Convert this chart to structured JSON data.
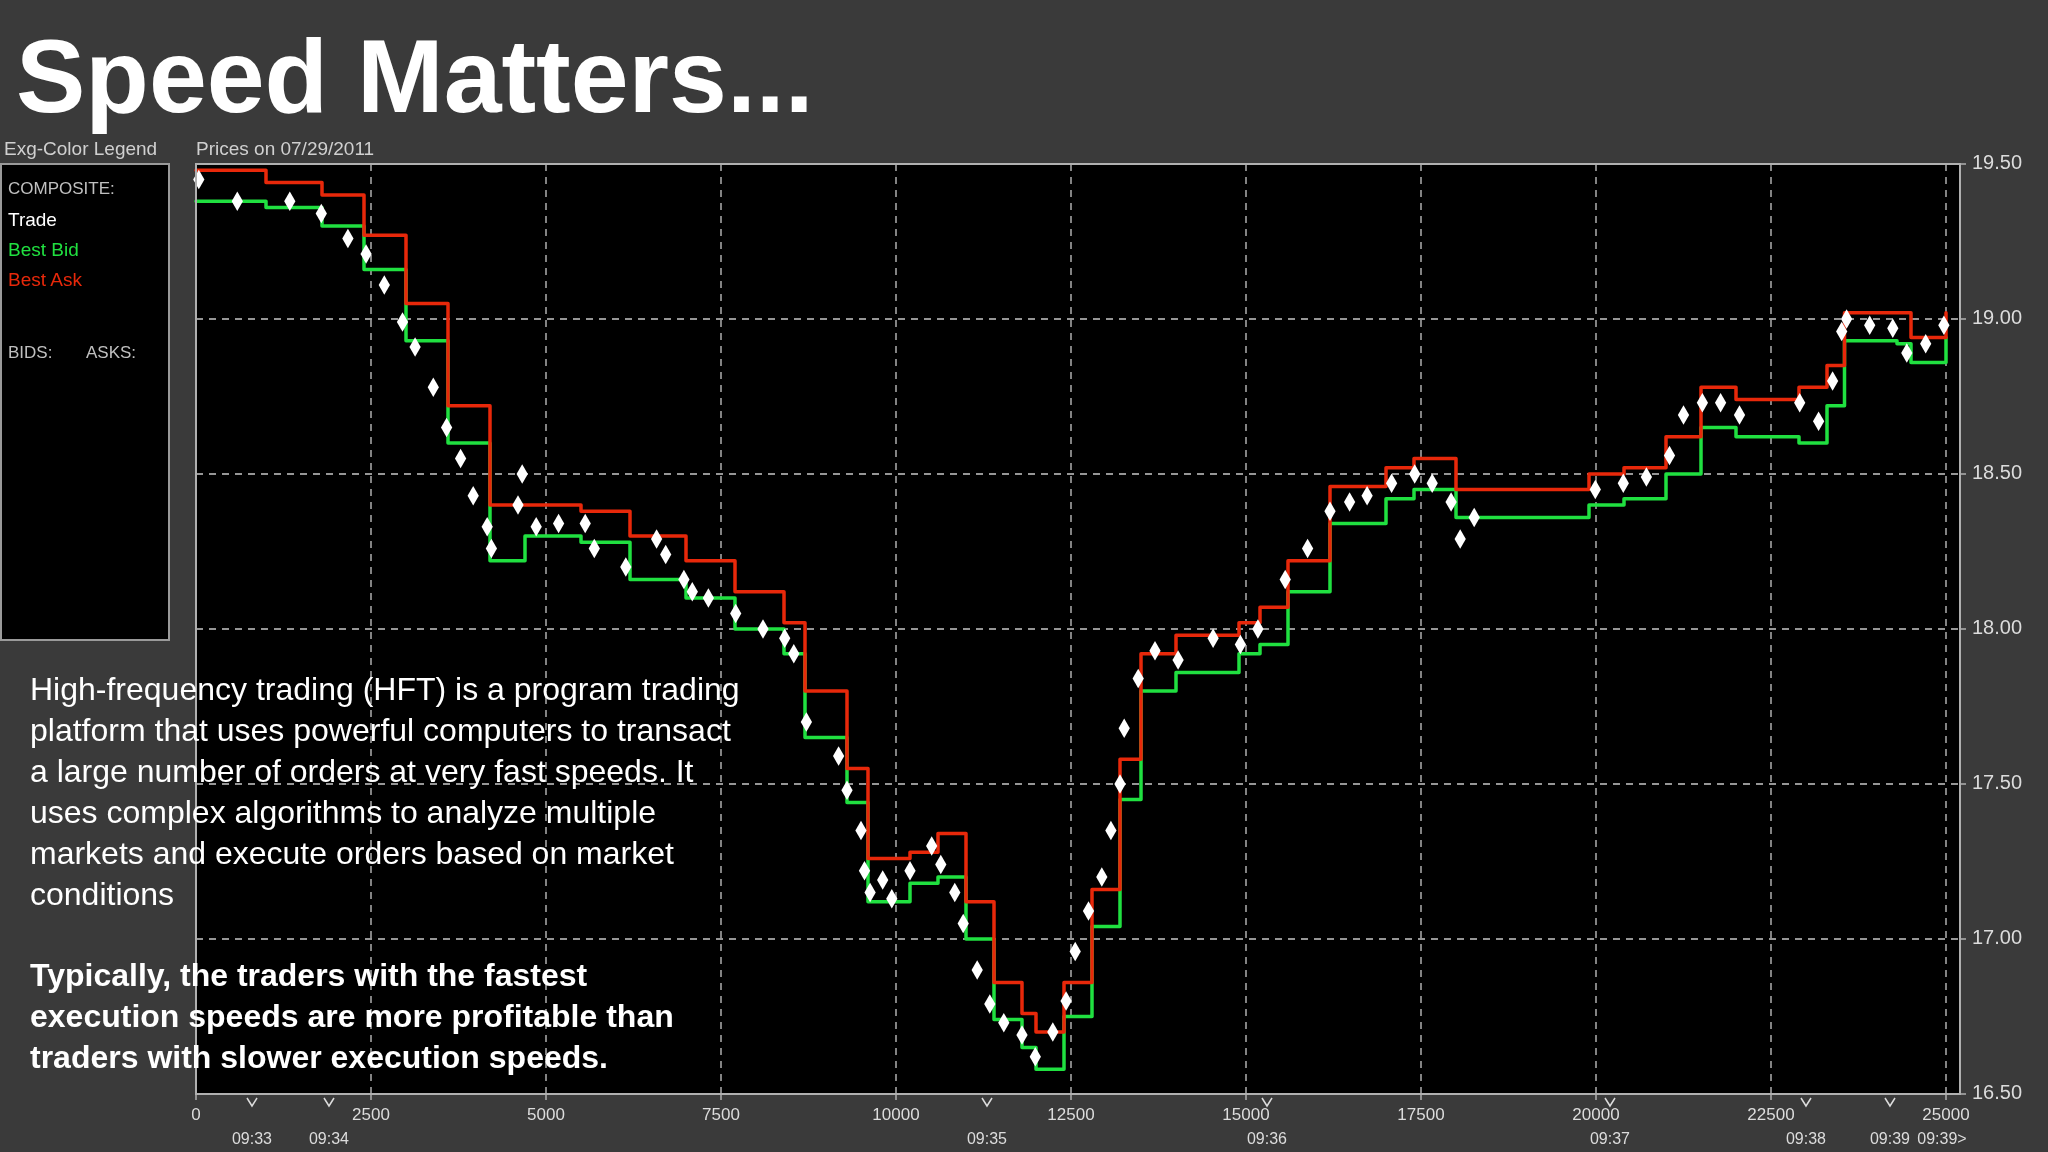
{
  "chart_data": {
    "type": "scatter",
    "title": "Speed Matters...",
    "subtitle": "Prices on 07/29/2011",
    "legend_title": "Exg-Color Legend",
    "legend": "left",
    "grid": true,
    "xlim": [
      0,
      25200
    ],
    "xticks": [
      0,
      2500,
      5000,
      7500,
      10000,
      12500,
      15000,
      17500,
      20000,
      22500,
      25000
    ],
    "ylim": [
      16.5,
      19.5
    ],
    "yticks": [
      {
        "value": 16.5,
        "label": "16.50"
      },
      {
        "value": 17,
        "label": "17.00"
      },
      {
        "value": 17.5,
        "label": "17.50"
      },
      {
        "value": 18,
        "label": "18.00"
      },
      {
        "value": 18.5,
        "label": "18.50"
      },
      {
        "value": 19,
        "label": "19.00"
      },
      {
        "value": 19.5,
        "label": "19.50"
      }
    ],
    "x": [
      0,
      1000,
      1800,
      2400,
      3000,
      3600,
      4200,
      4700,
      5500,
      6200,
      7000,
      7700,
      8400,
      8700,
      9300,
      9600,
      10200,
      10600,
      11000,
      11400,
      11800,
      12000,
      12400,
      12800,
      13200,
      13500,
      14000,
      14900,
      15200,
      15600,
      16200,
      17000,
      17400,
      18000,
      18300,
      19900,
      20400,
      21000,
      21500,
      22000,
      22900,
      23300,
      23550,
      24300,
      24500,
      25000
    ],
    "series": [
      {
        "name": "Trade",
        "color": "#ffffff",
        "marker": "diamond",
        "x": [
          40,
          590,
          1340,
          1790,
          2170,
          2430,
          2690,
          2950,
          3130,
          3390,
          3580,
          3780,
          3960,
          4160,
          4220,
          4600,
          4660,
          4860,
          5180,
          5560,
          5690,
          6140,
          6580,
          6710,
          6970,
          7090,
          7320,
          7710,
          8100,
          8410,
          8540,
          8720,
          9180,
          9300,
          9500,
          9550,
          9630,
          9810,
          9940,
          10200,
          10510,
          10640,
          10840,
          10960,
          11160,
          11340,
          11540,
          11800,
          11990,
          12240,
          12430,
          12560,
          12750,
          12940,
          13070,
          13200,
          13260,
          13460,
          13700,
          14030,
          14530,
          14920,
          15170,
          15560,
          15880,
          16200,
          16480,
          16730,
          17080,
          17410,
          17660,
          17930,
          18060,
          18260,
          19990,
          20390,
          20720,
          21050,
          21250,
          21520,
          21780,
          22050,
          22910,
          23180,
          23380,
          23510,
          23580,
          23910,
          24240,
          24440,
          24710,
          24970
        ],
        "values": [
          19.45,
          19.38,
          19.38,
          19.34,
          19.26,
          19.21,
          19.11,
          18.99,
          18.91,
          18.78,
          18.65,
          18.55,
          18.43,
          18.33,
          18.26,
          18.4,
          18.5,
          18.33,
          18.34,
          18.34,
          18.26,
          18.2,
          18.29,
          18.24,
          18.16,
          18.12,
          18.1,
          18.05,
          18.0,
          17.97,
          17.92,
          17.7,
          17.59,
          17.48,
          17.35,
          17.22,
          17.15,
          17.19,
          17.13,
          17.22,
          17.3,
          17.24,
          17.15,
          17.05,
          16.9,
          16.79,
          16.73,
          16.69,
          16.62,
          16.7,
          16.8,
          16.96,
          17.09,
          17.2,
          17.35,
          17.5,
          17.68,
          17.84,
          17.93,
          17.9,
          17.97,
          17.95,
          18.0,
          18.16,
          18.26,
          18.38,
          18.41,
          18.43,
          18.47,
          18.5,
          18.47,
          18.41,
          18.29,
          18.36,
          18.45,
          18.47,
          18.49,
          18.56,
          18.69,
          18.73,
          18.73,
          18.69,
          18.73,
          18.67,
          18.8,
          18.96,
          19.0,
          18.98,
          18.97,
          18.89,
          18.92,
          18.98
        ]
      },
      {
        "name": "Best Bid",
        "type": "step",
        "color": "#20e040",
        "values": [
          19.38,
          19.36,
          19.3,
          19.16,
          18.93,
          18.6,
          18.22,
          18.3,
          18.28,
          18.16,
          18.1,
          18.0,
          17.92,
          17.65,
          17.44,
          17.12,
          17.18,
          17.2,
          17.0,
          16.74,
          16.65,
          16.58,
          16.75,
          17.04,
          17.45,
          17.8,
          17.86,
          17.92,
          17.95,
          18.12,
          18.34,
          18.42,
          18.45,
          18.36,
          18.36,
          18.4,
          18.42,
          18.5,
          18.65,
          18.62,
          18.6,
          18.72,
          18.93,
          18.92,
          18.86,
          18.94
        ]
      },
      {
        "name": "Best Ask",
        "type": "step",
        "color": "#e8280a",
        "values": [
          19.48,
          19.44,
          19.4,
          19.27,
          19.05,
          18.72,
          18.4,
          18.4,
          18.38,
          18.3,
          18.22,
          18.12,
          18.02,
          17.8,
          17.55,
          17.26,
          17.28,
          17.34,
          17.12,
          16.86,
          16.76,
          16.7,
          16.86,
          17.16,
          17.58,
          17.92,
          17.98,
          18.02,
          18.07,
          18.22,
          18.46,
          18.52,
          18.55,
          18.45,
          18.45,
          18.5,
          18.52,
          18.62,
          18.78,
          18.74,
          18.78,
          18.85,
          19.02,
          19.02,
          18.94,
          19.02
        ]
      }
    ],
    "annotations": [
      "COMPOSITE:",
      "BIDS:",
      "ASKS:",
      "High-frequency trading (HFT) is a program trading platform that uses powerful computers to transact a large number of orders at very fast speeds. It uses complex algorithms to analyze multiple markets and execute orders based on market conditions",
      "Typically, the traders with the fastest execution speeds are more profitable than traders with slower execution speeds.",
      "09:33",
      "09:34",
      "09:35",
      "09:36",
      "09:37",
      "09:38",
      "09:39",
      "09:39>"
    ]
  }
}
